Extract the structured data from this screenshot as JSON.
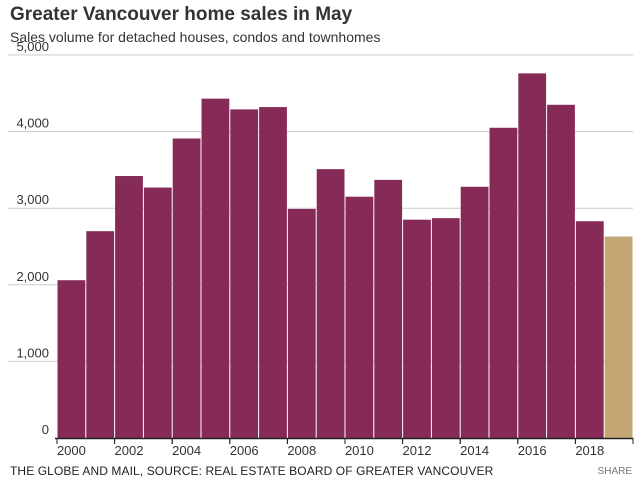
{
  "chart_data": {
    "type": "bar",
    "title": "Greater Vancouver home sales in May",
    "subtitle": "Sales volume for detached houses, condos and townhomes",
    "categories": [
      "2000",
      "2001",
      "2002",
      "2003",
      "2004",
      "2005",
      "2006",
      "2007",
      "2008",
      "2009",
      "2010",
      "2011",
      "2012",
      "2013",
      "2014",
      "2015",
      "2016",
      "2017",
      "2018",
      "2019"
    ],
    "values": [
      2060,
      2700,
      3420,
      3270,
      3910,
      4430,
      4290,
      4320,
      2990,
      3510,
      3150,
      3370,
      2850,
      2870,
      3280,
      4050,
      4760,
      4350,
      2830,
      2630
    ],
    "x_tick_labels": [
      "2000",
      "2002",
      "2004",
      "2006",
      "2008",
      "2010",
      "2012",
      "2014",
      "2016",
      "2018"
    ],
    "y_tick_labels": [
      "0",
      "1,000",
      "2,000",
      "3,000",
      "4,000",
      "5,000"
    ],
    "y_ticks": [
      0,
      1000,
      2000,
      3000,
      4000,
      5000
    ],
    "ylim": [
      0,
      5000
    ],
    "xlabel": "",
    "ylabel": "",
    "grid": true,
    "colors": {
      "bar": "#862b58",
      "highlight_bar": "#c4a675",
      "grid": "#cccccc",
      "axis": "#222222"
    },
    "highlight_index": 19
  },
  "source": "THE GLOBE AND MAIL, SOURCE: REAL ESTATE BOARD OF GREATER VANCOUVER",
  "share_label": "SHARE"
}
